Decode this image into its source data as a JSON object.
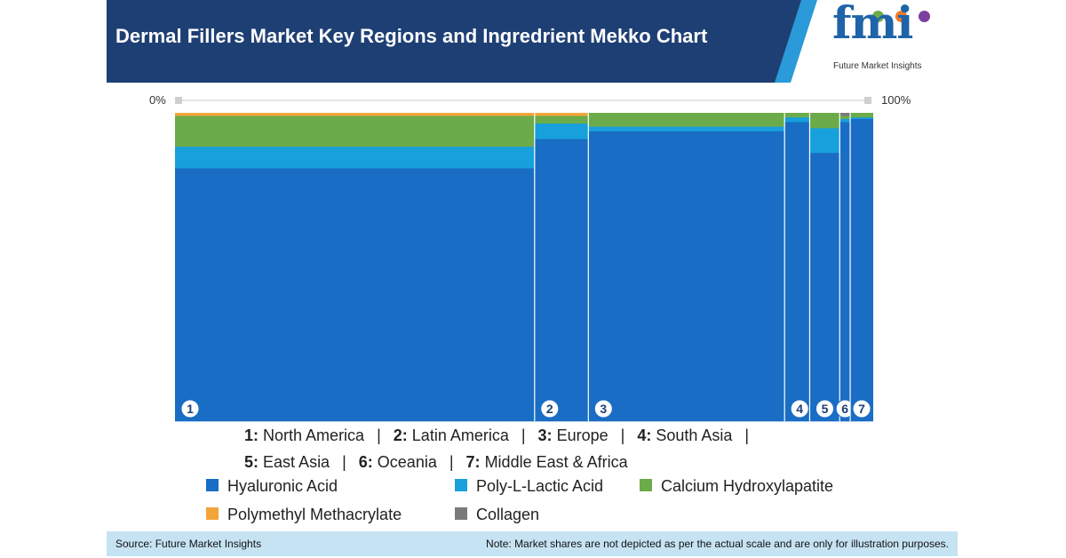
{
  "header": {
    "title": "Dermal Fillers Market Key Regions and Ingredrient Mekko Chart",
    "colors": {
      "dark": "#1e3f74",
      "stripe": "#2a9ad8"
    }
  },
  "logo": {
    "text": "fmi",
    "subtitle": "Future Market Insights"
  },
  "axis": {
    "left": "0%",
    "right": "100%"
  },
  "chart_data": {
    "type": "mekko",
    "title": "Dermal Fillers Market Key Regions and Ingredrient Mekko Chart",
    "x_unit": "% share of market by region (column width)",
    "y_unit": "% share of ingredient within region",
    "series_order": [
      "Polymethyl Methacrylate",
      "Collagen",
      "Calcium Hydroxylapatite",
      "Poly-L-Lactic Acid",
      "Hyaluronic Acid"
    ],
    "colors": {
      "Hyaluronic Acid": "#1a6dc4",
      "Poly-L-Lactic Acid": "#17a0dc",
      "Calcium Hydroxylapatite": "#6bab49",
      "Polymethyl Methacrylate": "#f3a43a",
      "Collagen": "#7a7a7a"
    },
    "columns": [
      {
        "num": "1",
        "region": "North America",
        "width": 51.5,
        "shares": {
          "Polymethyl Methacrylate": 1,
          "Collagen": 0,
          "Calcium Hydroxylapatite": 10,
          "Poly-L-Lactic Acid": 7,
          "Hyaluronic Acid": 82
        }
      },
      {
        "num": "2",
        "region": "Latin America",
        "width": 7.7,
        "shares": {
          "Polymethyl Methacrylate": 1,
          "Collagen": 0,
          "Calcium Hydroxylapatite": 2.5,
          "Poly-L-Lactic Acid": 5,
          "Hyaluronic Acid": 91.5
        }
      },
      {
        "num": "3",
        "region": "Europe",
        "width": 28.1,
        "shares": {
          "Polymethyl Methacrylate": 0,
          "Collagen": 0,
          "Calcium Hydroxylapatite": 4.5,
          "Poly-L-Lactic Acid": 1.5,
          "Hyaluronic Acid": 94
        }
      },
      {
        "num": "4",
        "region": "South Asia",
        "width": 3.6,
        "shares": {
          "Polymethyl Methacrylate": 0,
          "Collagen": 0,
          "Calcium Hydroxylapatite": 1.5,
          "Poly-L-Lactic Acid": 1.5,
          "Hyaluronic Acid": 97
        }
      },
      {
        "num": "5",
        "region": "East Asia",
        "width": 4.3,
        "shares": {
          "Polymethyl Methacrylate": 0,
          "Collagen": 0,
          "Calcium Hydroxylapatite": 5,
          "Poly-L-Lactic Acid": 8,
          "Hyaluronic Acid": 87
        }
      },
      {
        "num": "6",
        "region": "Oceania",
        "width": 1.5,
        "shares": {
          "Polymethyl Methacrylate": 0,
          "Collagen": 1,
          "Calcium Hydroxylapatite": 1,
          "Poly-L-Lactic Acid": 1,
          "Hyaluronic Acid": 97
        }
      },
      {
        "num": "7",
        "region": "Middle East & Africa",
        "width": 3.3,
        "shares": {
          "Polymethyl Methacrylate": 0,
          "Collagen": 0,
          "Calcium Hydroxylapatite": 1.5,
          "Poly-L-Lactic Acid": 0.5,
          "Hyaluronic Acid": 98
        }
      }
    ]
  },
  "region_legend": {
    "row1": [
      {
        "num": "1:",
        "name": "North America"
      },
      {
        "num": "2:",
        "name": "Latin America"
      },
      {
        "num": "3:",
        "name": "Europe"
      },
      {
        "num": "4:",
        "name": "South Asia"
      }
    ],
    "row2": [
      {
        "num": "5:",
        "name": "East Asia"
      },
      {
        "num": "6:",
        "name": "Oceania"
      },
      {
        "num": "7:",
        "name": "Middle East & Africa"
      }
    ]
  },
  "ingredient_legend": [
    {
      "label": "Hyaluronic Acid",
      "color": "#1a6dc4"
    },
    {
      "label": "Poly-L-Lactic Acid",
      "color": "#17a0dc"
    },
    {
      "label": "Calcium Hydroxylapatite",
      "color": "#6bab49"
    },
    {
      "label": "Polymethyl Methacrylate",
      "color": "#f3a43a"
    },
    {
      "label": "Collagen",
      "color": "#7a7a7a"
    }
  ],
  "footer": {
    "source": "Source: Future Market Insights",
    "note": "Note: Market shares are not depicted as per the actual scale and are only for illustration purposes."
  }
}
